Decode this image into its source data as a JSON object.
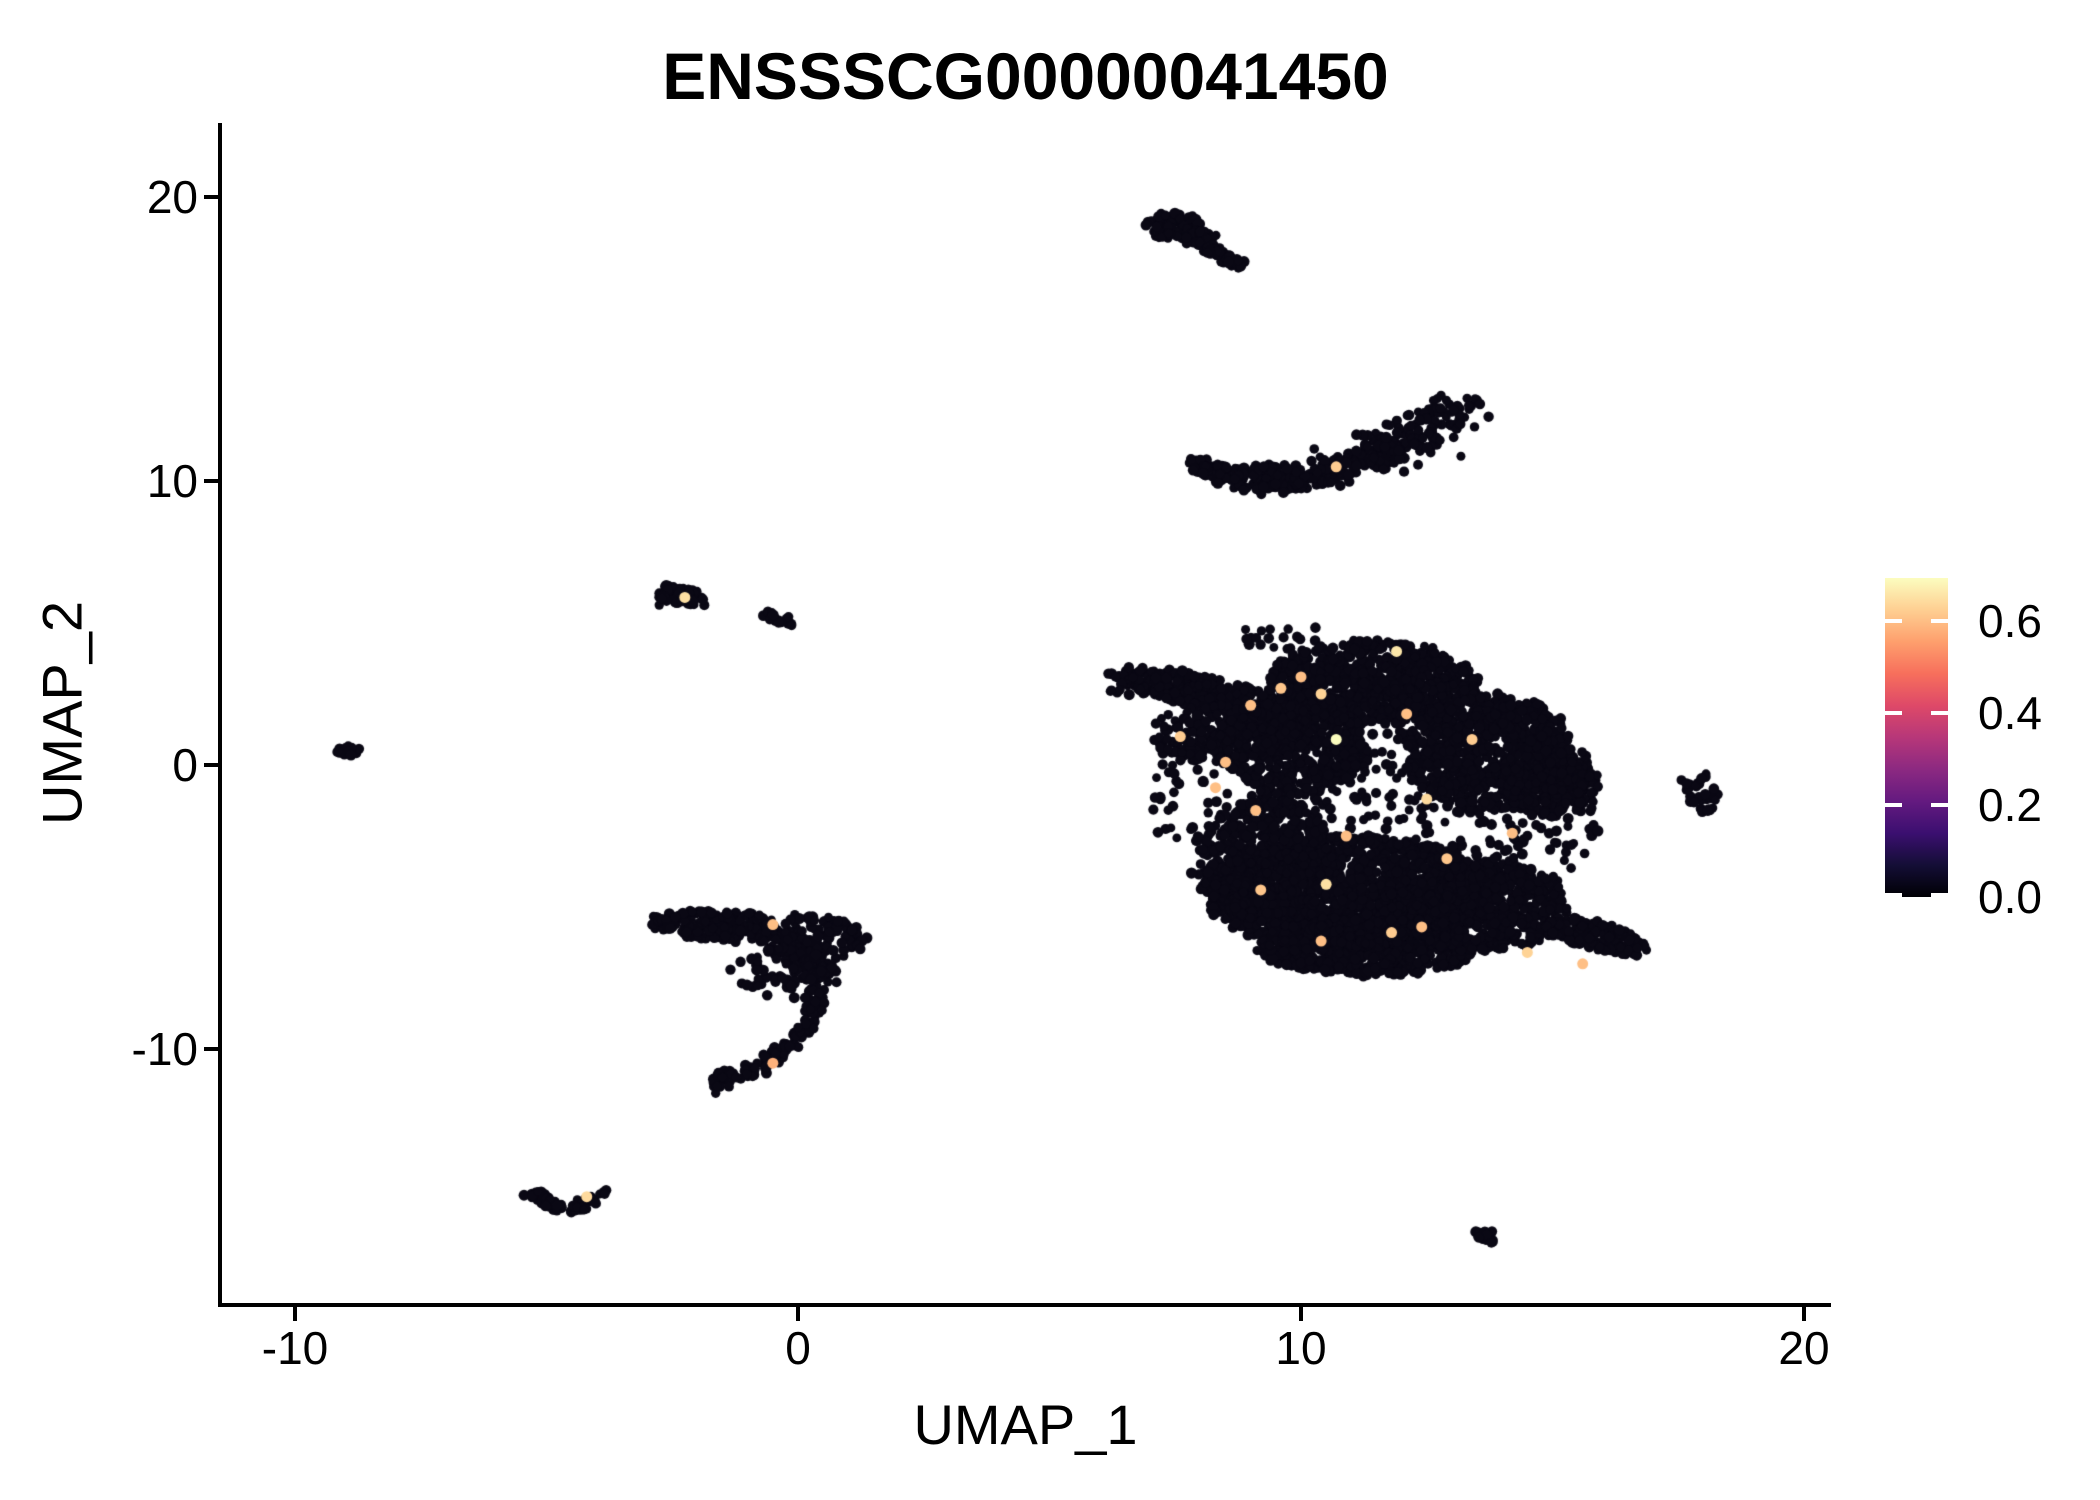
{
  "chart_data": {
    "type": "scatter",
    "title": "ENSSSCG00000041450",
    "xlabel": "UMAP_1",
    "ylabel": "UMAP_2",
    "xlim": [
      -11.45,
      20.5
    ],
    "ylim": [
      -18.9,
      22.6
    ],
    "grid": false,
    "legend_position": "right",
    "x_ticks": [
      -10,
      0,
      10,
      20
    ],
    "x_tick_labels": [
      "-10",
      "0",
      "10",
      "20"
    ],
    "y_ticks": [
      20,
      10,
      0,
      -10
    ],
    "y_tick_labels": [
      "20",
      "10",
      "0",
      "-10"
    ],
    "point_color": "#0A0814",
    "point_radius_px": 5,
    "base_expression_value": 0.0,
    "colorbar": {
      "vmin": 0.0,
      "vmax": 0.693,
      "tick_values": [
        0.6,
        0.4,
        0.2,
        0.0
      ],
      "tick_labels": [
        "0.6",
        "0.4",
        "0.2",
        "0.0"
      ],
      "colormap": "magma",
      "stops": [
        {
          "pos": 0.0,
          "color": "#000004"
        },
        {
          "pos": 0.1,
          "color": "#140E36"
        },
        {
          "pos": 0.2,
          "color": "#3B0F70"
        },
        {
          "pos": 0.3,
          "color": "#641A80"
        },
        {
          "pos": 0.4,
          "color": "#8C2981"
        },
        {
          "pos": 0.5,
          "color": "#B73779"
        },
        {
          "pos": 0.6,
          "color": "#DE4968"
        },
        {
          "pos": 0.7,
          "color": "#F76F5C"
        },
        {
          "pos": 0.8,
          "color": "#FE9F6D"
        },
        {
          "pos": 0.9,
          "color": "#FECF92"
        },
        {
          "pos": 1.0,
          "color": "#FCFDBF"
        }
      ]
    },
    "clusters": [
      {
        "name": "top-spike",
        "blobs": [
          [
            7.5,
            18.95,
            0.55,
            0.5,
            0,
            90
          ],
          [
            7.95,
            18.6,
            0.35,
            0.25,
            -45,
            35
          ],
          [
            8.45,
            17.9,
            0.6,
            0.15,
            -46,
            50
          ]
        ]
      },
      {
        "name": "upper-crescent",
        "curves": [
          {
            "x": [
              7.9,
              5.25,
              0
            ],
            "y": [
              10.6,
              -3.25,
              5.3
            ],
            "w0": 0.3,
            "w1": 0.75,
            "n": 480
          }
        ]
      },
      {
        "name": "main-mass",
        "blobs": [
          [
            8.1,
            2.55,
            1.9,
            0.55,
            -22,
            320
          ],
          [
            8.6,
            1.1,
            1.6,
            1.1,
            0,
            260
          ],
          [
            6.5,
            2.95,
            0.4,
            0.5,
            0,
            12
          ],
          [
            9.6,
            4.5,
            1.1,
            0.45,
            0,
            18
          ],
          [
            11.4,
            2.9,
            2.1,
            1.5,
            0,
            700
          ],
          [
            9.9,
            0.6,
            1.4,
            1.7,
            0,
            450
          ],
          [
            13.7,
            0.4,
            1.7,
            2.1,
            0,
            700
          ],
          [
            15.0,
            -0.7,
            0.95,
            1.1,
            0,
            220
          ],
          [
            11.0,
            -4.5,
            2.9,
            2.0,
            0,
            1500
          ],
          [
            11.3,
            -6.4,
            2.2,
            1.0,
            0,
            650
          ],
          [
            13.6,
            -5.0,
            1.7,
            1.6,
            0,
            600
          ],
          [
            9.3,
            -3.2,
            1.3,
            2.2,
            0,
            480
          ],
          [
            15.8,
            -6.0,
            1.15,
            0.45,
            -27,
            150
          ],
          [
            11.5,
            -1.5,
            4.5,
            4.8,
            0,
            650
          ]
        ]
      },
      {
        "name": "left-small",
        "blobs": [
          [
            -2.35,
            5.95,
            0.55,
            0.4,
            -18,
            55
          ],
          [
            -0.72,
            5.35,
            0.1,
            0.08,
            0,
            3
          ],
          [
            -0.35,
            5.1,
            0.3,
            0.1,
            -20,
            12
          ]
        ]
      },
      {
        "name": "far-left-dot",
        "blobs": [
          [
            -8.95,
            0.5,
            0.24,
            0.2,
            0,
            14
          ]
        ]
      },
      {
        "name": "mid-left",
        "blobs": [
          [
            -1.6,
            -5.65,
            1.3,
            0.5,
            -6,
            200
          ],
          [
            0.3,
            -6.1,
            1.05,
            0.8,
            0,
            130
          ],
          [
            -0.2,
            -7.3,
            1.0,
            0.9,
            0,
            70
          ],
          [
            0.35,
            -7.15,
            0.38,
            0.45,
            0,
            55
          ]
        ],
        "curves": [
          {
            "x": [
              0.4,
              -0.2,
              -2.0
            ],
            "y": [
              -8.0,
              -4.3,
              1.0
            ],
            "w0": 0.22,
            "w1": 0.3,
            "n": 130
          }
        ]
      },
      {
        "name": "bottom-left-v",
        "blobs": [
          [
            -4.95,
            -15.35,
            0.5,
            0.17,
            -49,
            45
          ],
          [
            -4.25,
            -15.45,
            0.42,
            0.15,
            47,
            35
          ],
          [
            -3.87,
            -15.05,
            0.1,
            0.08,
            0,
            4
          ]
        ]
      },
      {
        "name": "bottom-right-dash",
        "blobs": [
          [
            13.75,
            -16.6,
            0.33,
            0.14,
            -42,
            18
          ]
        ]
      },
      {
        "name": "right-small",
        "blobs": [
          [
            17.95,
            -0.95,
            0.32,
            0.68,
            10,
            32
          ]
        ]
      }
    ],
    "highlighted_cells": [
      {
        "x": 10.7,
        "y": 10.5,
        "value": 0.62
      },
      {
        "x": -2.25,
        "y": 5.9,
        "value": 0.65
      },
      {
        "x": -0.5,
        "y": -5.62,
        "value": 0.6
      },
      {
        "x": -0.5,
        "y": -10.5,
        "value": 0.58
      },
      {
        "x": -4.2,
        "y": -15.2,
        "value": 0.64
      },
      {
        "x": 11.9,
        "y": 4.0,
        "value": 0.66
      },
      {
        "x": 10.0,
        "y": 3.1,
        "value": 0.6
      },
      {
        "x": 9.6,
        "y": 2.7,
        "value": 0.61
      },
      {
        "x": 10.4,
        "y": 2.5,
        "value": 0.63
      },
      {
        "x": 9.0,
        "y": 2.1,
        "value": 0.6
      },
      {
        "x": 7.6,
        "y": 1.0,
        "value": 0.62
      },
      {
        "x": 10.7,
        "y": 0.9,
        "value": 0.693
      },
      {
        "x": 8.5,
        "y": 0.1,
        "value": 0.6
      },
      {
        "x": 12.5,
        "y": -1.2,
        "value": 0.64
      },
      {
        "x": 9.1,
        "y": -1.6,
        "value": 0.6
      },
      {
        "x": 9.2,
        "y": -4.4,
        "value": 0.61
      },
      {
        "x": 10.5,
        "y": -4.2,
        "value": 0.65
      },
      {
        "x": 10.4,
        "y": -6.2,
        "value": 0.6
      },
      {
        "x": 11.8,
        "y": -5.9,
        "value": 0.62
      },
      {
        "x": 12.4,
        "y": -5.7,
        "value": 0.6
      },
      {
        "x": 14.5,
        "y": -6.6,
        "value": 0.63
      },
      {
        "x": 15.6,
        "y": -7.0,
        "value": 0.6
      },
      {
        "x": 12.1,
        "y": 1.8,
        "value": 0.6
      },
      {
        "x": 13.4,
        "y": 0.9,
        "value": 0.62
      },
      {
        "x": 14.2,
        "y": -2.4,
        "value": 0.6
      },
      {
        "x": 12.9,
        "y": -3.3,
        "value": 0.61
      },
      {
        "x": 10.9,
        "y": -2.5,
        "value": 0.6
      },
      {
        "x": 8.3,
        "y": -0.8,
        "value": 0.6
      }
    ]
  },
  "rng_seed": 1337
}
